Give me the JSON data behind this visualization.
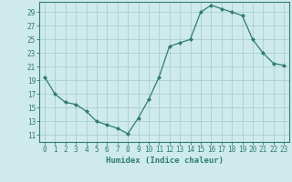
{
  "x": [
    0,
    1,
    2,
    3,
    4,
    5,
    6,
    7,
    8,
    9,
    10,
    11,
    12,
    13,
    14,
    15,
    16,
    17,
    18,
    19,
    20,
    21,
    22,
    23
  ],
  "y": [
    19.5,
    17.0,
    15.8,
    15.5,
    14.5,
    13.0,
    12.5,
    12.0,
    11.2,
    13.5,
    16.2,
    19.5,
    24.0,
    24.5,
    25.0,
    29.0,
    30.0,
    29.5,
    29.0,
    28.5,
    25.0,
    23.0,
    21.5,
    21.2
  ],
  "line_color": "#2e7d6e",
  "marker": "D",
  "marker_size": 2.0,
  "bg_color": "#ceeaea",
  "grid_color": "#aacfcf",
  "xlabel": "Humidex (Indice chaleur)",
  "ylabel_ticks": [
    11,
    13,
    15,
    17,
    19,
    21,
    23,
    25,
    27,
    29
  ],
  "xlim": [
    -0.5,
    23.5
  ],
  "ylim": [
    10.0,
    30.5
  ],
  "tick_color": "#2e7d6e",
  "label_color": "#2e7d6e",
  "spine_color": "#2e7d6e",
  "tick_fontsize": 5.5,
  "xlabel_fontsize": 6.5
}
